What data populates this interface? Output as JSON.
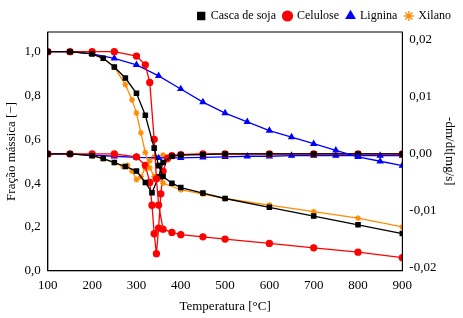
{
  "chart_data": {
    "type": "line",
    "x_label": "Temperatura [°C]",
    "y_label": "Fração mássica [−]",
    "y2_label": "-dm/dt[mg/s]",
    "xlim": [
      100,
      900
    ],
    "xticks": [
      100,
      200,
      300,
      400,
      500,
      600,
      700,
      800,
      900
    ],
    "ylim": [
      0,
      1.09
    ],
    "yticks": [
      {
        "value": 0,
        "label": "0,0"
      },
      {
        "value": 0.2,
        "label": "0,2"
      },
      {
        "value": 0.4,
        "label": "0,4"
      },
      {
        "value": 0.6,
        "label": "0,6"
      },
      {
        "value": 0.8,
        "label": "0,8"
      },
      {
        "value": 1.0,
        "label": "1,0"
      }
    ],
    "y2lim": [
      -0.0205,
      0.0214
    ],
    "y2ticks": [
      {
        "value": -0.02,
        "label": "-0,02"
      },
      {
        "value": -0.01,
        "label": "-0,01"
      },
      {
        "value": 0,
        "label": "0,00"
      },
      {
        "value": 0.01,
        "label": "0,01"
      },
      {
        "value": 0.02,
        "label": "0,02"
      }
    ],
    "grid": false,
    "legend": "upper right",
    "series": [
      {
        "name": "Casca de soja",
        "color": "#000000",
        "marker": "square",
        "x": [
          100,
          150,
          200,
          225,
          250,
          275,
          300,
          320,
          340,
          350,
          360,
          380,
          400,
          450,
          500,
          600,
          700,
          800,
          900
        ],
        "values": [
          1.0,
          1.0,
          0.99,
          0.97,
          0.93,
          0.88,
          0.81,
          0.71,
          0.56,
          0.48,
          0.43,
          0.4,
          0.38,
          0.355,
          0.33,
          0.29,
          0.25,
          0.21,
          0.17
        ]
      },
      {
        "name": "Celulose",
        "color": "#ff0000",
        "marker": "circle",
        "x": [
          100,
          150,
          200,
          250,
          300,
          320,
          330,
          340,
          345,
          350,
          360,
          380,
          400,
          450,
          500,
          600,
          700,
          800,
          900
        ],
        "values": [
          1.0,
          1.0,
          1.0,
          1.0,
          0.98,
          0.94,
          0.86,
          0.6,
          0.42,
          0.3,
          0.19,
          0.175,
          0.165,
          0.155,
          0.145,
          0.125,
          0.105,
          0.085,
          0.06
        ]
      },
      {
        "name": "Lignina",
        "color": "#0000ff",
        "marker": "triangle",
        "x": [
          100,
          150,
          200,
          250,
          300,
          350,
          400,
          450,
          500,
          550,
          600,
          650,
          700,
          750,
          800,
          850,
          900
        ],
        "values": [
          1.0,
          1.0,
          0.99,
          0.97,
          0.94,
          0.89,
          0.83,
          0.77,
          0.72,
          0.68,
          0.64,
          0.61,
          0.58,
          0.55,
          0.52,
          0.5,
          0.48
        ]
      },
      {
        "name": "Xilano",
        "color": "#ff8c00",
        "marker": "star",
        "x": [
          100,
          150,
          200,
          225,
          250,
          275,
          290,
          300,
          310,
          320,
          330,
          340,
          360,
          400,
          450,
          500,
          600,
          700,
          800,
          900
        ],
        "values": [
          1.0,
          1.0,
          0.99,
          0.97,
          0.93,
          0.85,
          0.78,
          0.72,
          0.63,
          0.54,
          0.47,
          0.43,
          0.4,
          0.37,
          0.35,
          0.33,
          0.3,
          0.27,
          0.24,
          0.2
        ]
      },
      {
        "name": "Casca de soja",
        "color": "#000000",
        "marker": "square",
        "axis": "y2",
        "x": [
          100,
          150,
          200,
          225,
          250,
          275,
          300,
          320,
          335,
          350,
          360,
          380,
          400,
          450,
          500,
          600,
          700,
          800,
          900
        ],
        "values": [
          0,
          0,
          -0.0003,
          -0.0008,
          -0.0015,
          -0.0022,
          -0.003,
          -0.005,
          -0.0068,
          -0.004,
          -0.0015,
          -0.0004,
          -0.0002,
          -0.0001,
          0,
          0,
          0,
          0,
          0
        ]
      },
      {
        "name": "Celulose",
        "color": "#ff0000",
        "marker": "circle",
        "axis": "y2",
        "x": [
          100,
          150,
          200,
          250,
          300,
          320,
          330,
          335,
          340,
          345,
          350,
          355,
          360,
          370,
          380,
          400,
          450,
          500,
          600,
          700,
          800,
          900
        ],
        "values": [
          0,
          0,
          0,
          0,
          -0.0005,
          -0.002,
          -0.005,
          -0.009,
          -0.014,
          -0.0175,
          -0.013,
          -0.007,
          -0.003,
          -0.0008,
          -0.0003,
          -0.0001,
          0,
          0,
          0,
          0,
          0,
          0
        ]
      },
      {
        "name": "Lignina",
        "color": "#0000ff",
        "marker": "triangle",
        "axis": "y2",
        "x": [
          100,
          150,
          200,
          250,
          300,
          350,
          400,
          450,
          500,
          550,
          600,
          650,
          700,
          750,
          800,
          850,
          900
        ],
        "values": [
          0,
          0,
          -0.0002,
          -0.0004,
          -0.0006,
          -0.0007,
          -0.0007,
          -0.0006,
          -0.0005,
          -0.0004,
          -0.0004,
          -0.0003,
          -0.0003,
          -0.0003,
          -0.0003,
          -0.0003,
          -0.0003
        ]
      },
      {
        "name": "Xilano",
        "color": "#ff8c00",
        "marker": "star",
        "axis": "y2",
        "x": [
          100,
          150,
          200,
          225,
          250,
          270,
          280,
          290,
          300,
          310,
          320,
          330,
          340,
          360,
          400,
          450,
          500,
          600,
          700,
          800,
          900
        ],
        "values": [
          0,
          0,
          -0.0003,
          -0.0008,
          -0.0015,
          -0.0022,
          -0.002,
          -0.003,
          -0.0045,
          -0.004,
          -0.0025,
          -0.0012,
          -0.0005,
          -0.0002,
          -0.0001,
          0,
          0,
          0,
          0,
          0,
          0
        ]
      }
    ]
  }
}
